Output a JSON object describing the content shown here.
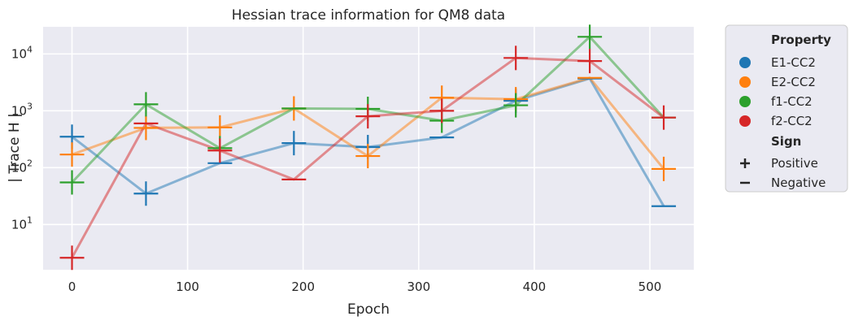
{
  "chart_data": {
    "type": "line",
    "title": "Hessian trace information for QM8 data",
    "xlabel": "Epoch",
    "ylabel": "| Trace H |",
    "xlim": [
      -25,
      538
    ],
    "ylim": [
      1.6,
      30000
    ],
    "yscale": "log",
    "x_ticks": [
      0,
      100,
      200,
      300,
      400,
      500
    ],
    "y_ticks": [
      {
        "value": 10,
        "label": "10",
        "exp": "1"
      },
      {
        "value": 100,
        "label": "10",
        "exp": "2"
      },
      {
        "value": 1000,
        "label": "10",
        "exp": "3"
      },
      {
        "value": 10000,
        "label": "10",
        "exp": "4"
      }
    ],
    "grid": true,
    "legend_position": "outside-right",
    "legend": {
      "hue_title": "Property",
      "style_title": "Sign",
      "style_items": [
        {
          "marker": "plus",
          "label": "Positive"
        },
        {
          "marker": "minus",
          "label": "Negative"
        }
      ]
    },
    "series": [
      {
        "name": "E1-CC2",
        "color": "#1f77b4",
        "points": [
          {
            "x": 0,
            "y": 350,
            "sign": "+"
          },
          {
            "x": 64,
            "y": 35,
            "sign": "+"
          },
          {
            "x": 128,
            "y": 120,
            "sign": "-"
          },
          {
            "x": 192,
            "y": 270,
            "sign": "+"
          },
          {
            "x": 256,
            "y": 230,
            "sign": "+"
          },
          {
            "x": 320,
            "y": 340,
            "sign": "-"
          },
          {
            "x": 384,
            "y": 1500,
            "sign": "+"
          },
          {
            "x": 448,
            "y": 3700,
            "sign": "-"
          },
          {
            "x": 512,
            "y": 21,
            "sign": "-"
          }
        ]
      },
      {
        "name": "E2-CC2",
        "color": "#ff7f0e",
        "points": [
          {
            "x": 0,
            "y": 170,
            "sign": "+"
          },
          {
            "x": 64,
            "y": 500,
            "sign": "+"
          },
          {
            "x": 128,
            "y": 510,
            "sign": "+"
          },
          {
            "x": 192,
            "y": 1100,
            "sign": "+"
          },
          {
            "x": 256,
            "y": 160,
            "sign": "+"
          },
          {
            "x": 320,
            "y": 1700,
            "sign": "+"
          },
          {
            "x": 384,
            "y": 1600,
            "sign": "+"
          },
          {
            "x": 448,
            "y": 3800,
            "sign": "-"
          },
          {
            "x": 512,
            "y": 95,
            "sign": "+"
          }
        ]
      },
      {
        "name": "f1-CC2",
        "color": "#2ca02c",
        "points": [
          {
            "x": 0,
            "y": 55,
            "sign": "+"
          },
          {
            "x": 64,
            "y": 1300,
            "sign": "+"
          },
          {
            "x": 128,
            "y": 220,
            "sign": "+"
          },
          {
            "x": 192,
            "y": 1100,
            "sign": "-"
          },
          {
            "x": 256,
            "y": 1080,
            "sign": "+"
          },
          {
            "x": 320,
            "y": 670,
            "sign": "+"
          },
          {
            "x": 384,
            "y": 1250,
            "sign": "+"
          },
          {
            "x": 448,
            "y": 20000,
            "sign": "+"
          },
          {
            "x": 512,
            "y": 760,
            "sign": "-"
          }
        ]
      },
      {
        "name": "f2-CC2",
        "color": "#d62728",
        "points": [
          {
            "x": 0,
            "y": 2.6,
            "sign": "+"
          },
          {
            "x": 64,
            "y": 600,
            "sign": "-"
          },
          {
            "x": 128,
            "y": 200,
            "sign": "+"
          },
          {
            "x": 192,
            "y": 62,
            "sign": "-"
          },
          {
            "x": 256,
            "y": 800,
            "sign": "+"
          },
          {
            "x": 320,
            "y": 1000,
            "sign": "+"
          },
          {
            "x": 384,
            "y": 8500,
            "sign": "+"
          },
          {
            "x": 448,
            "y": 7500,
            "sign": "+"
          },
          {
            "x": 512,
            "y": 760,
            "sign": "+"
          }
        ]
      }
    ]
  }
}
